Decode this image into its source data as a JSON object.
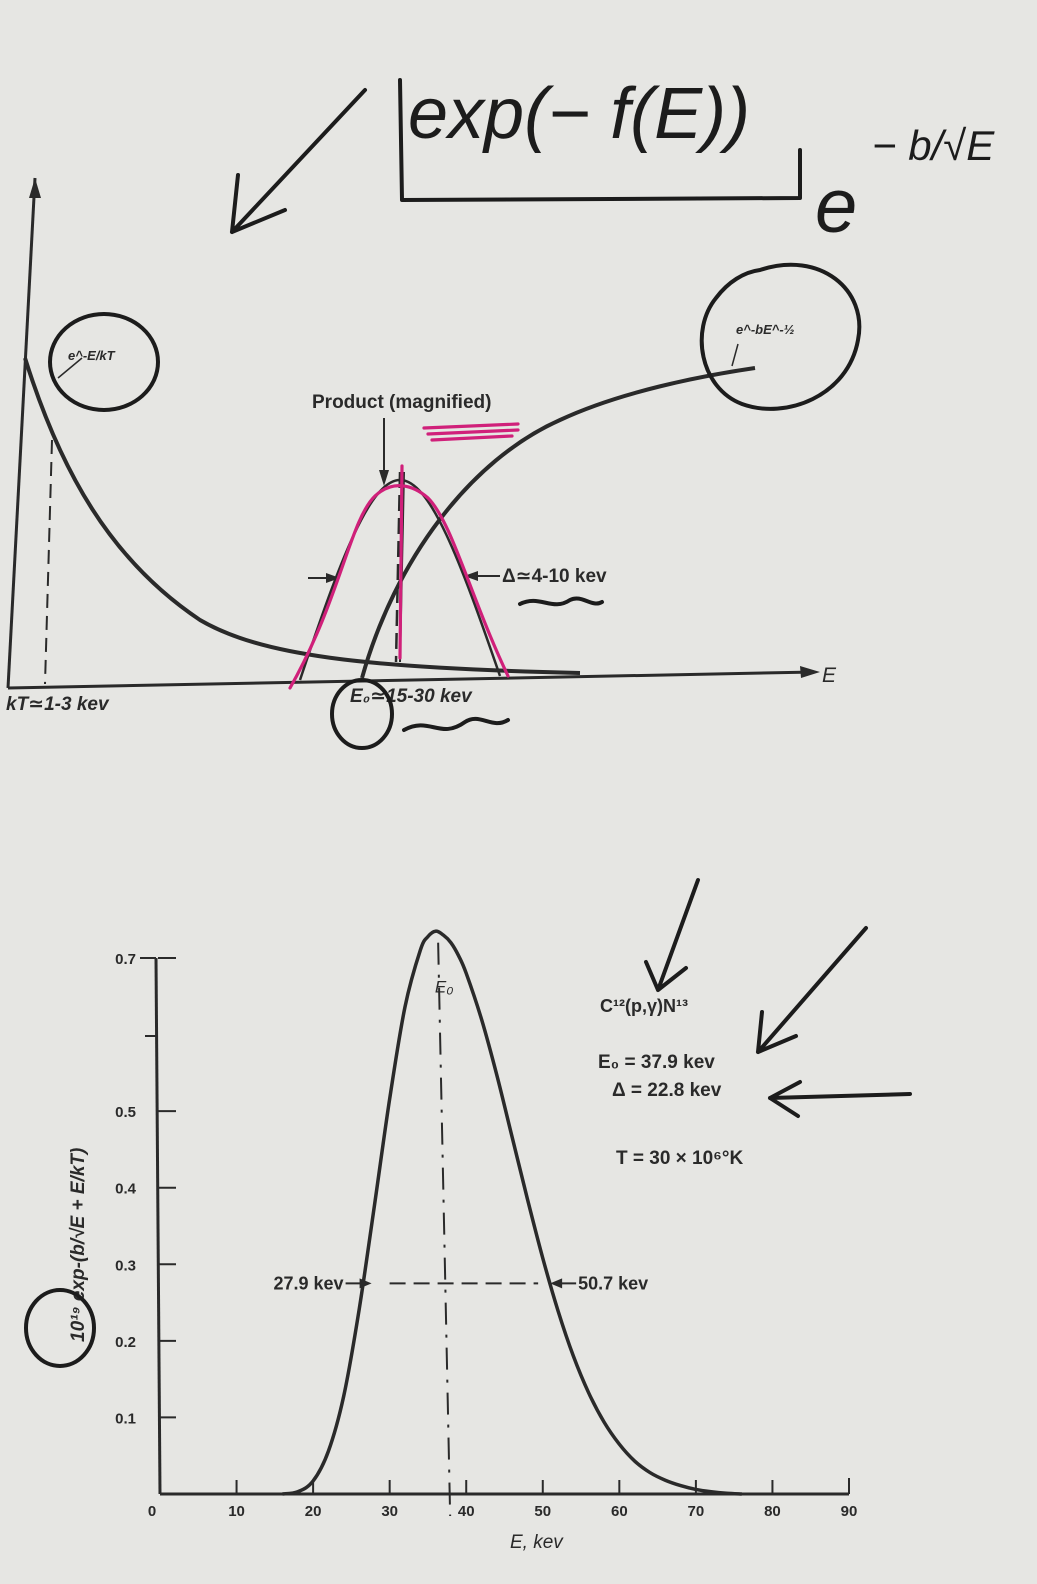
{
  "annotations": {
    "exp_formula": "exp(− f(E))",
    "e_power": "e",
    "neg_b_over_sqrtE": "− b/√E"
  },
  "diagram": {
    "boltzmann_label": "e^-E/kT",
    "tunnel_label": "e^-bE^-½",
    "product_label": "Product (magnified)",
    "width_label": "Δ≃4-10 kev",
    "x_axis_label": "E",
    "kT_label": "kT≃1-3 kev",
    "peak_label": "E₀≃15-30 kev"
  },
  "chart_data": {
    "type": "line",
    "title": "",
    "xlabel": "E, kev",
    "ylabel": "10¹⁹ exp-(b/√E + E/kT)",
    "xlim": [
      0,
      90
    ],
    "ylim": [
      0,
      0.7
    ],
    "xticks": [
      "0",
      "10",
      "20",
      "30",
      "40",
      "50",
      "60",
      "70",
      "80",
      "90"
    ],
    "yticks": [
      "0.1",
      "0.2",
      "0.3",
      "0.4",
      "0.5",
      "0.7"
    ],
    "series": [
      {
        "x": [
          16,
          18,
          20,
          22,
          24,
          26,
          28,
          30,
          32,
          34,
          35,
          36,
          37,
          38,
          39,
          40,
          42,
          44,
          46,
          48,
          50,
          52,
          54,
          56,
          58,
          60,
          62,
          64,
          66,
          68,
          70,
          72,
          74,
          76
        ],
        "values": [
          0.0,
          0.003,
          0.017,
          0.056,
          0.128,
          0.24,
          0.376,
          0.516,
          0.636,
          0.71,
          0.728,
          0.735,
          0.73,
          0.72,
          0.703,
          0.68,
          0.62,
          0.547,
          0.466,
          0.385,
          0.308,
          0.239,
          0.18,
          0.132,
          0.094,
          0.065,
          0.043,
          0.028,
          0.018,
          0.011,
          0.006,
          0.003,
          0.001,
          0.0
        ]
      }
    ],
    "reaction": "C¹²(p,γ)N¹³",
    "E0_text": "E₀ = 37.9 kev",
    "delta_text": "Δ = 22.8 kev",
    "temperature_text": "T = 30 × 10⁶°K",
    "peak_marker": "E₀",
    "left_half_label": "27.9 kev",
    "right_half_label": "50.7 kev",
    "left_half_value": 27.9,
    "right_half_value": 50.7,
    "peak_value": 37.9
  }
}
